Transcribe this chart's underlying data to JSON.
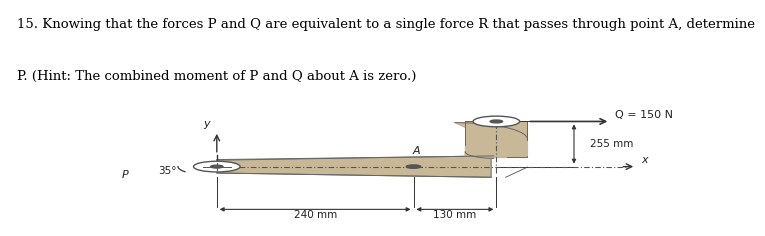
{
  "title_line1": "15. Knowing that the forces P and Q are equivalent to a single force R that passes through point A, determine",
  "title_line2": "P. (Hint: The combined moment of P and Q about A is zero.)",
  "title_fontsize": 9.5,
  "bg_color": "#e8dfc8",
  "fig_bg": "#ffffff",
  "Q_label": "Q = 150 N",
  "dim_240": "240 mm",
  "dim_130": "130 mm",
  "dim_255": "255 mm",
  "P_label": "P",
  "angle_label": "35°",
  "x_label": "x",
  "y_label": "y",
  "A_label": "A",
  "body_color": "#c8b898",
  "body_edge": "#666666",
  "line_color": "#555555",
  "arrow_color": "#333333",
  "text_color": "#222222"
}
